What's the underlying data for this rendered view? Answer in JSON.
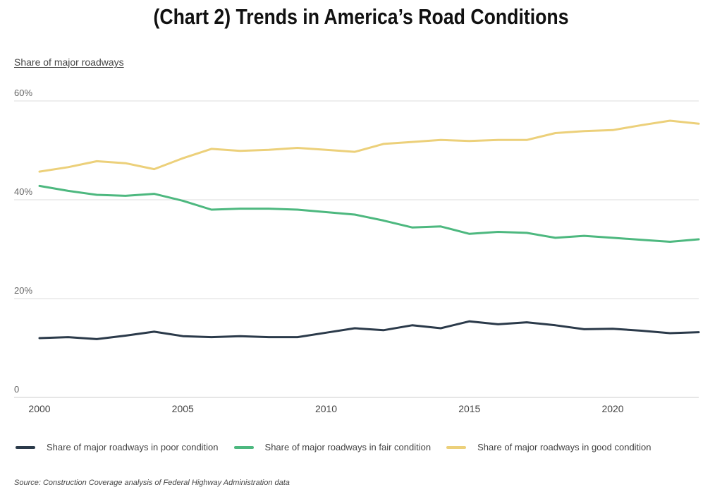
{
  "title": "(Chart 2) Trends in America’s Road Conditions",
  "subtitle": "Share of major roadways",
  "source": "Source: Construction Coverage analysis of Federal Highway Administration data",
  "colors": {
    "poor": "#2b3a4a",
    "fair": "#4db87f",
    "good": "#ecd07a",
    "grid": "#dddddd"
  },
  "chart_data": {
    "type": "line",
    "ylabel": "Share of major roadways",
    "xlabel": "",
    "x": [
      2000,
      2001,
      2002,
      2003,
      2004,
      2005,
      2006,
      2007,
      2008,
      2009,
      2010,
      2011,
      2012,
      2013,
      2014,
      2015,
      2016,
      2017,
      2018,
      2019,
      2020,
      2021,
      2022,
      2023
    ],
    "xlim": [
      2000,
      2023
    ],
    "ylim": [
      0,
      60
    ],
    "y_ticks": [
      0,
      20,
      40,
      60
    ],
    "y_tick_labels": [
      "0",
      "20%",
      "40%",
      "60%"
    ],
    "x_ticks": [
      2000,
      2005,
      2010,
      2015,
      2020
    ],
    "x_tick_labels": [
      "2000",
      "2005",
      "2010",
      "2015",
      "2020"
    ],
    "grid": true,
    "legend_position": "bottom",
    "series": [
      {
        "name": "Share of major roadways in poor condition",
        "color": "#2b3a4a",
        "values": [
          12.0,
          12.2,
          11.8,
          12.5,
          13.3,
          12.4,
          12.2,
          12.4,
          12.2,
          12.2,
          13.1,
          14.0,
          13.6,
          14.6,
          14.0,
          15.4,
          14.8,
          15.2,
          14.6,
          13.8,
          13.9,
          13.5,
          13.0,
          13.2
        ]
      },
      {
        "name": "Share of major roadways in fair condition",
        "color": "#4db87f",
        "values": [
          42.8,
          41.8,
          41.0,
          40.8,
          41.2,
          39.8,
          38.0,
          38.2,
          38.2,
          38.0,
          37.5,
          37.0,
          35.8,
          34.4,
          34.6,
          33.1,
          33.5,
          33.3,
          32.3,
          32.7,
          32.3,
          31.9,
          31.5,
          32.0
        ]
      },
      {
        "name": "Share of major roadways in good condition",
        "color": "#ecd07a",
        "values": [
          45.7,
          46.6,
          47.8,
          47.4,
          46.2,
          48.4,
          50.3,
          49.9,
          50.1,
          50.5,
          50.1,
          49.7,
          51.3,
          51.7,
          52.1,
          51.9,
          52.1,
          52.1,
          53.5,
          53.9,
          54.1,
          55.1,
          56.0,
          55.4
        ]
      }
    ]
  }
}
